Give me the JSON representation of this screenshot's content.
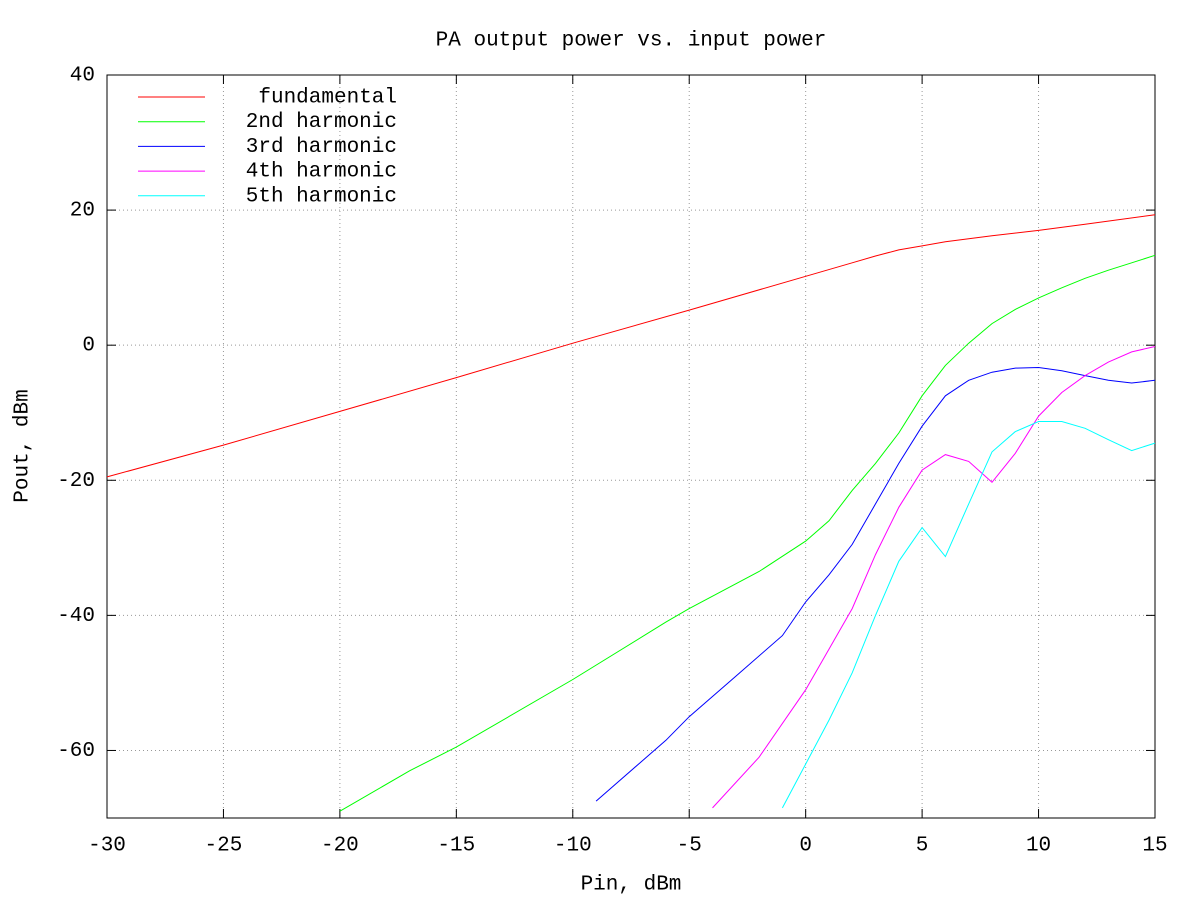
{
  "chart_data": {
    "type": "line",
    "title": "PA output power vs. input power",
    "x_label": "Pin, dBm",
    "y_label": "Pout, dBm",
    "xlim": [
      -30,
      15
    ],
    "ylim": [
      -70,
      40
    ],
    "xticks": [
      -30,
      -25,
      -20,
      -15,
      -10,
      -5,
      0,
      5,
      10,
      15
    ],
    "yticks": [
      -60,
      -40,
      -20,
      0,
      20,
      40
    ],
    "grid": true,
    "legend": "top-left",
    "series": [
      {
        "name": "fundamental",
        "color": "#ff0000",
        "x": [
          -30,
          -25,
          -20,
          -15,
          -10,
          -5,
          0,
          2,
          3,
          4,
          5,
          6,
          8,
          10,
          12,
          15
        ],
        "values": [
          -19.5,
          -14.8,
          -9.8,
          -4.8,
          0.3,
          5.2,
          10.2,
          12.2,
          13.2,
          14.1,
          14.7,
          15.3,
          16.2,
          17.0,
          17.9,
          19.3
        ]
      },
      {
        "name": "2nd harmonic",
        "color": "#00ff00",
        "x": [
          -20,
          -17,
          -15,
          -10,
          -6,
          -5,
          -2,
          0,
          1,
          2,
          3,
          4,
          5,
          6,
          7,
          8,
          9,
          10,
          11,
          12,
          13,
          14,
          15
        ],
        "values": [
          -69,
          -63,
          -59.5,
          -49.5,
          -41,
          -39,
          -33.5,
          -29,
          -26,
          -21.5,
          -17.5,
          -13,
          -7.5,
          -3,
          0.3,
          3.2,
          5.3,
          7,
          8.5,
          9.9,
          11.1,
          12.2,
          13.3
        ]
      },
      {
        "name": "3rd harmonic",
        "color": "#0000ff",
        "x": [
          -9,
          -6,
          -5,
          -3,
          -1,
          0,
          1,
          2,
          3,
          4,
          5,
          6,
          7,
          8,
          9,
          10,
          11,
          12,
          13,
          14,
          15
        ],
        "values": [
          -67.5,
          -58.5,
          -55,
          -49,
          -43,
          -38,
          -34,
          -29.5,
          -23.5,
          -17.5,
          -12,
          -7.5,
          -5.2,
          -4,
          -3.4,
          -3.3,
          -3.8,
          -4.5,
          -5.2,
          -5.6,
          -5.2
        ]
      },
      {
        "name": "4th harmonic",
        "color": "#ff00ff",
        "x": [
          -4,
          -2,
          0,
          1,
          2,
          3,
          4,
          5,
          6,
          7,
          8,
          9,
          10,
          11,
          12,
          13,
          14,
          15
        ],
        "values": [
          -68.5,
          -61,
          -51,
          -45,
          -39,
          -31,
          -24,
          -18.5,
          -16.2,
          -17.2,
          -20.3,
          -16,
          -10.5,
          -7,
          -4.5,
          -2.5,
          -1,
          -0.2
        ]
      },
      {
        "name": "5th harmonic",
        "color": "#00ffff",
        "x": [
          -1,
          0,
          1,
          2,
          3,
          4,
          5,
          6,
          7,
          8,
          9,
          10,
          11,
          12,
          13,
          14,
          15
        ],
        "values": [
          -68.5,
          -62,
          -55.5,
          -48.5,
          -40,
          -32,
          -27,
          -31.3,
          -23.5,
          -15.8,
          -12.8,
          -11.3,
          -11.3,
          -12.3,
          -14,
          -15.6,
          -14.5
        ]
      }
    ]
  }
}
